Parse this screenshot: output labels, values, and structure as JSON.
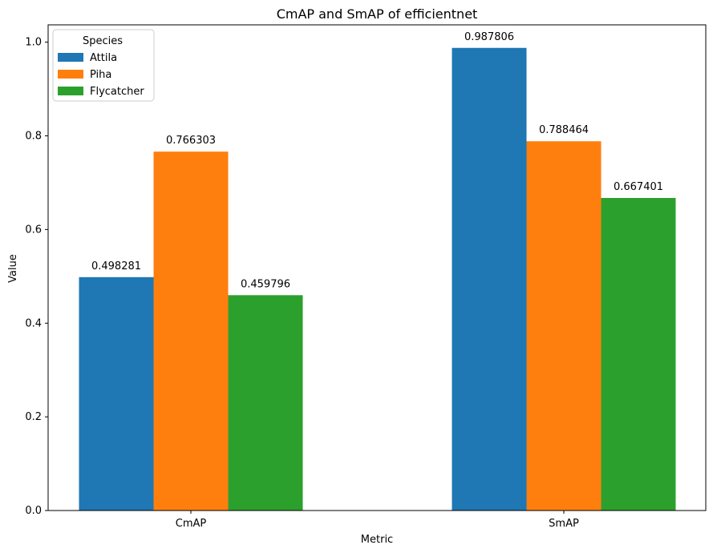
{
  "chart_data": {
    "type": "bar",
    "title": "CmAP and SmAP of efficientnet",
    "xlabel": "Metric",
    "ylabel": "Value",
    "categories": [
      "CmAP",
      "SmAP"
    ],
    "series": [
      {
        "name": "Attila",
        "values": [
          0.498281,
          0.987806
        ],
        "labels": [
          "0.498281",
          "0.987806"
        ],
        "color": "#1f77b4"
      },
      {
        "name": "Piha",
        "values": [
          0.766303,
          0.788464
        ],
        "labels": [
          "0.766303",
          "0.788464"
        ],
        "color": "#ff7f0e"
      },
      {
        "name": "Flycatcher",
        "values": [
          0.459796,
          0.667401
        ],
        "labels": [
          "0.459796",
          "0.667401"
        ],
        "color": "#2ca02c"
      }
    ],
    "ylim": [
      0,
      1.037
    ],
    "yticks": [
      "0.0",
      "0.2",
      "0.4",
      "0.6",
      "0.8",
      "1.0"
    ],
    "ytick_values": [
      0,
      0.2,
      0.4,
      0.6,
      0.8,
      1.0
    ],
    "grid": false,
    "legend": {
      "title": "Species",
      "placement": "top-left"
    }
  }
}
